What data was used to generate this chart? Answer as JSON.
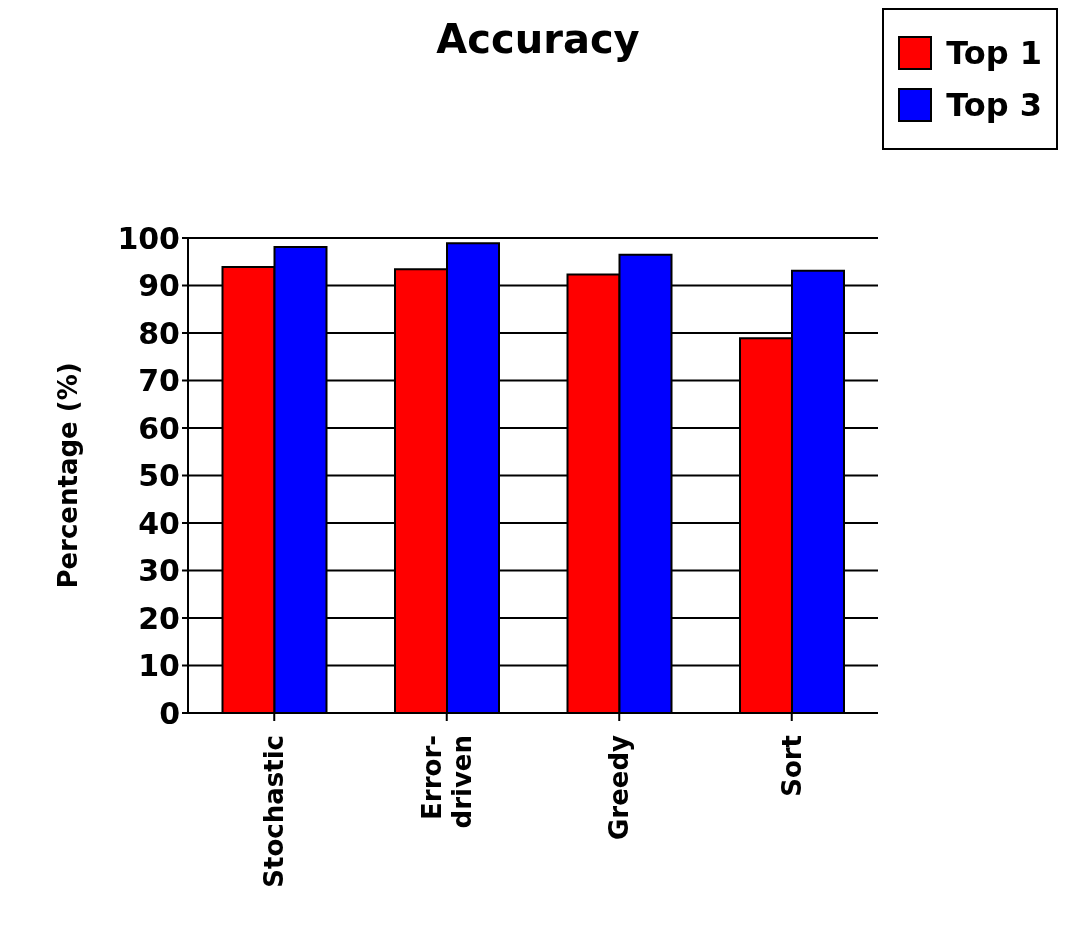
{
  "chart_data": {
    "type": "bar",
    "title": "Accuracy",
    "ylabel": "Percentage (%)",
    "categories": [
      "Stochastic",
      "Error-\ndriven",
      "Greedy",
      "Sort"
    ],
    "series": [
      {
        "name": "Top 1",
        "color": "#ff0000",
        "values": [
          93.9,
          93.4,
          92.3,
          78.9
        ]
      },
      {
        "name": "Top 3",
        "color": "#0000ff",
        "values": [
          98.1,
          98.9,
          96.5,
          93.1
        ]
      }
    ],
    "ylim": [
      0,
      100
    ],
    "yticks": [
      0,
      10,
      20,
      30,
      40,
      50,
      60,
      70,
      80,
      90,
      100
    ],
    "grid": "y",
    "legend": "top right"
  }
}
